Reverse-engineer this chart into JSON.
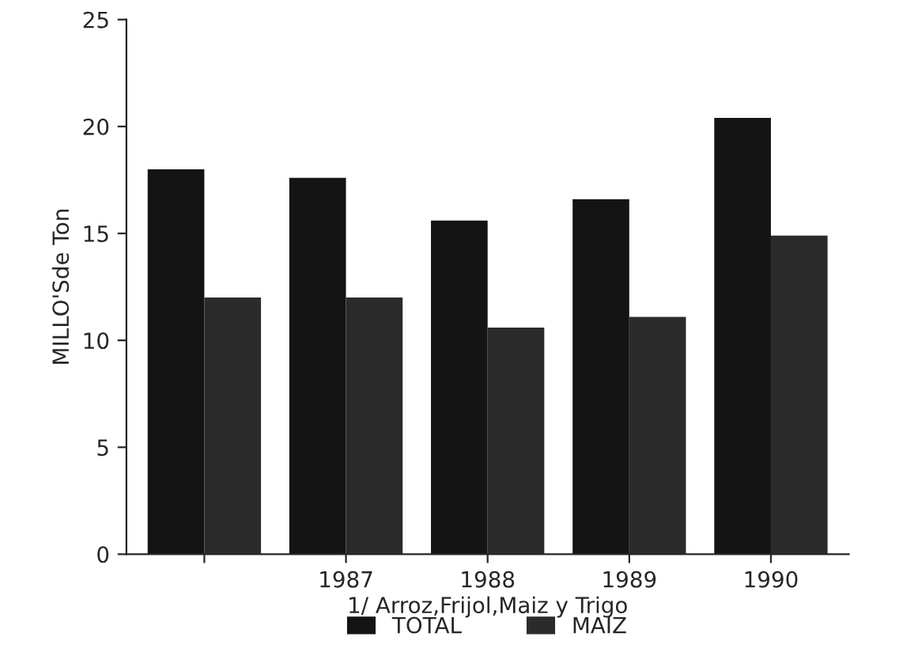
{
  "chart_data": {
    "type": "bar",
    "ylabel": "MILLO'Sde Ton",
    "xlabel": "1/ Arroz,Frijol,Maiz y Trigo",
    "categories": [
      null,
      "1987",
      "1988",
      "1989",
      "1990"
    ],
    "series": [
      {
        "name": "TOTAL",
        "color": "#141414",
        "values": [
          18.0,
          17.6,
          15.6,
          16.6,
          20.4
        ]
      },
      {
        "name": "MAIZ",
        "color": "#2b2b2b",
        "values": [
          12.0,
          12.0,
          10.6,
          11.1,
          14.9
        ]
      }
    ],
    "ylim": [
      0,
      25
    ],
    "yticks": [
      0,
      5,
      10,
      15,
      20,
      25
    ],
    "grid": false,
    "legend": "bottom"
  }
}
